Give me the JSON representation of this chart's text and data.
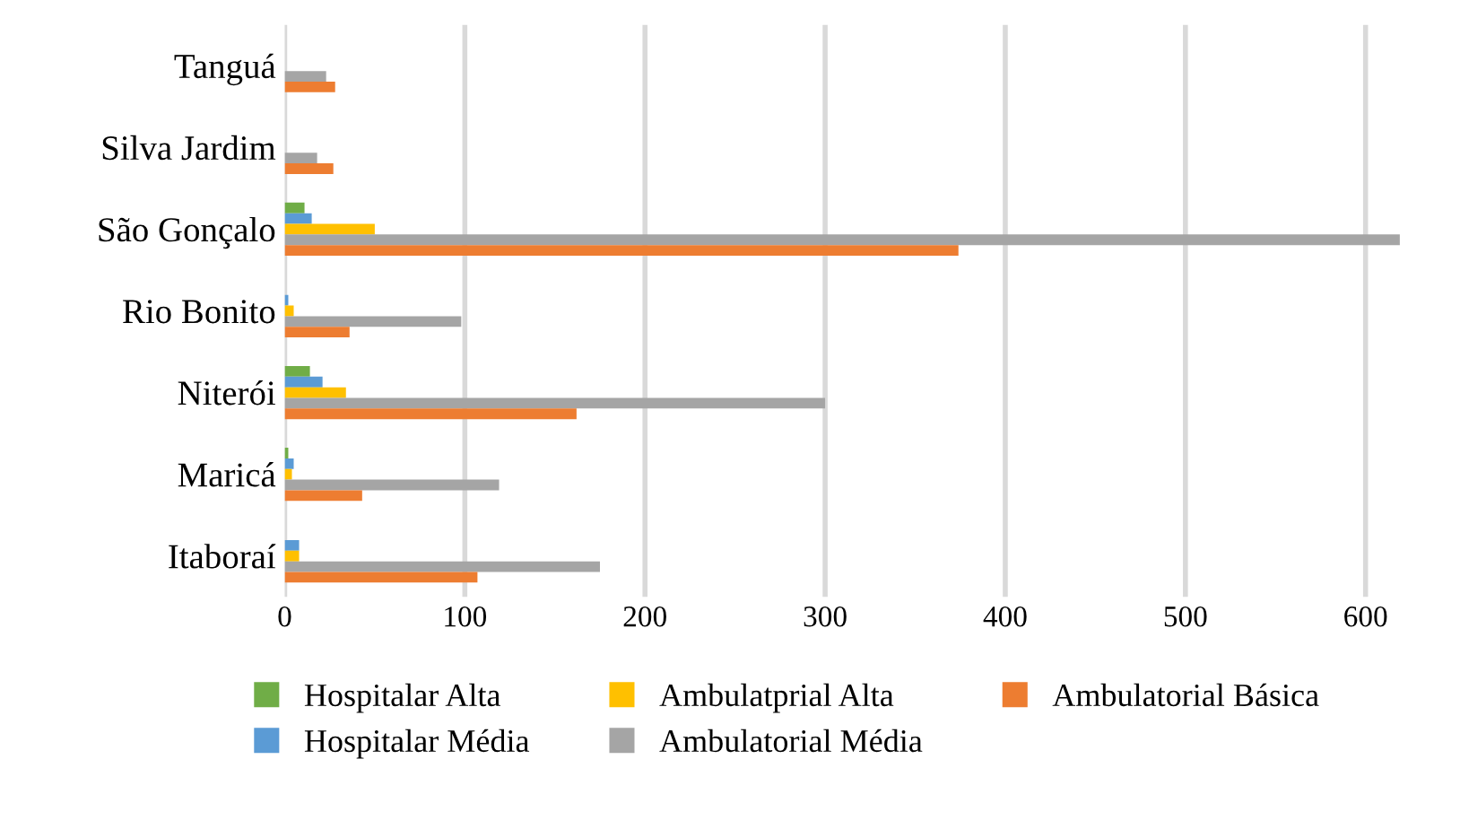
{
  "chart_data": {
    "type": "bar",
    "orientation": "horizontal",
    "categories": [
      "Tanguá",
      "Silva Jardim",
      "São Gonçalo",
      "Rio Bonito",
      "Niterói",
      "Maricá",
      "Itaboraí"
    ],
    "series": [
      {
        "name": "Hospitalar Alta",
        "color": "#70ad47",
        "values": [
          0,
          0,
          11,
          0,
          14,
          2,
          0
        ]
      },
      {
        "name": "Hospitalar Média",
        "color": "#5b9bd5",
        "values": [
          0,
          0,
          15,
          2,
          21,
          5,
          8
        ]
      },
      {
        "name": "Ambulatprial Alta",
        "color": "#ffc000",
        "values": [
          0,
          0,
          50,
          5,
          34,
          4,
          8
        ]
      },
      {
        "name": "Ambulatorial Média",
        "color": "#a5a5a5",
        "values": [
          23,
          18,
          619,
          98,
          300,
          119,
          175
        ]
      },
      {
        "name": "Ambulatorial Básica",
        "color": "#ed7d31",
        "values": [
          28,
          27,
          374,
          36,
          162,
          43,
          107
        ]
      }
    ],
    "xlim": [
      0,
      620
    ],
    "xticks": [
      0,
      100,
      200,
      300,
      400,
      500,
      600
    ],
    "grid": "x",
    "legend": "bottom"
  }
}
